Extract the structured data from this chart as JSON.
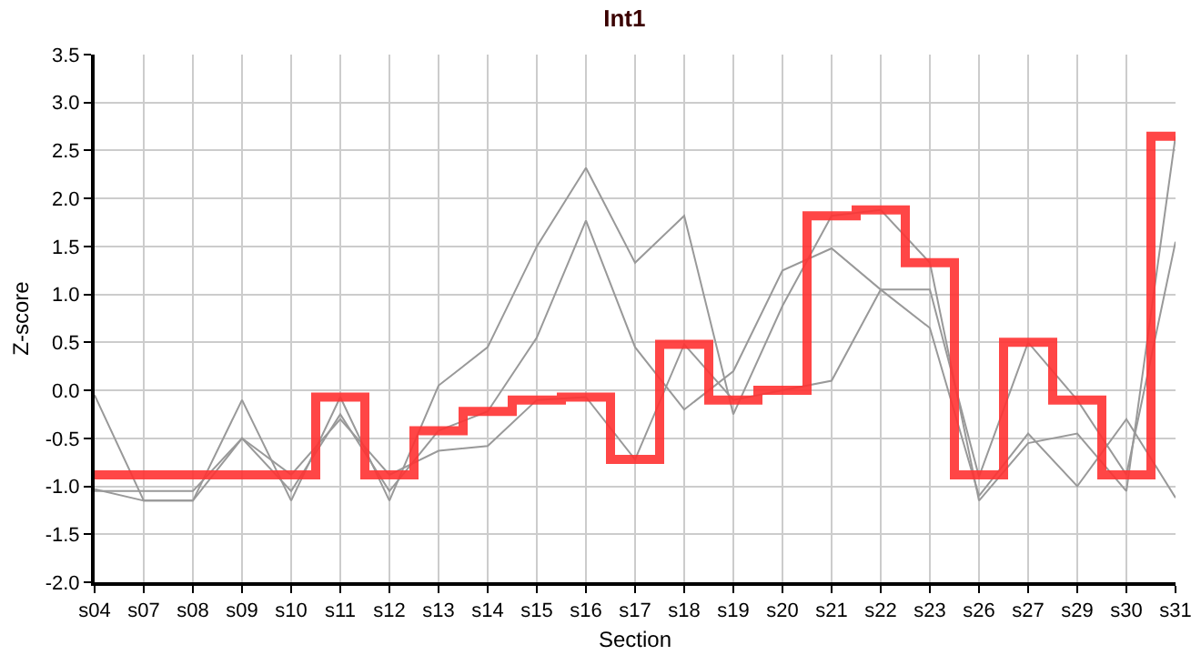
{
  "chart_data": {
    "type": "line",
    "title": "Int1",
    "xlabel": "Section",
    "ylabel": "Z-score",
    "categories": [
      "s04",
      "s07",
      "s08",
      "s09",
      "s10",
      "s11",
      "s12",
      "s13",
      "s14",
      "s15",
      "s16",
      "s17",
      "s18",
      "s19",
      "s20",
      "s21",
      "s22",
      "s23",
      "s26",
      "s27",
      "s29",
      "s30",
      "s31"
    ],
    "series": [
      {
        "color": "#999999",
        "values": [
          -0.05,
          -1.15,
          -1.15,
          -0.1,
          -1.15,
          -0.07,
          -1.15,
          0.05,
          0.45,
          1.5,
          2.32,
          1.33,
          1.82,
          -0.25,
          0.88,
          1.82,
          1.88,
          1.33,
          -1.15,
          -0.55,
          -0.45,
          -1.05,
          2.65
        ]
      },
      {
        "color": "#999999",
        "values": [
          -1.03,
          -1.15,
          -1.15,
          -0.5,
          -1.05,
          -0.25,
          -1.05,
          -0.42,
          -0.22,
          0.55,
          1.77,
          0.45,
          -0.2,
          0.2,
          1.25,
          1.48,
          1.05,
          0.65,
          -1.1,
          -0.45,
          -1.0,
          -0.3,
          -1.12
        ]
      },
      {
        "color": "#999999",
        "values": [
          -1.05,
          -1.05,
          -1.05,
          -0.5,
          -0.88,
          -0.3,
          -0.88,
          -0.63,
          -0.58,
          -0.1,
          -0.07,
          -0.72,
          0.48,
          -0.1,
          0.0,
          0.1,
          1.05,
          1.05,
          -0.9,
          0.5,
          -0.1,
          -0.88,
          1.55
        ]
      },
      {
        "type": "step",
        "color": "#ff3333",
        "values": [
          -0.88,
          -0.88,
          -0.88,
          -0.88,
          -0.88,
          -0.07,
          -0.88,
          -0.42,
          -0.22,
          -0.1,
          -0.07,
          -0.72,
          0.48,
          -0.1,
          0.0,
          1.82,
          1.88,
          1.33,
          -0.88,
          0.5,
          -0.1,
          -0.88,
          2.65
        ]
      }
    ],
    "ylim": [
      -2.0,
      3.5
    ],
    "yticks": [
      {
        "value": -2,
        "label": "-2.0"
      },
      {
        "value": -1.5,
        "label": "-1.5"
      },
      {
        "value": -1,
        "label": "-1.0"
      },
      {
        "value": -0.5,
        "label": "-0.5"
      },
      {
        "value": 0,
        "label": "0.0"
      },
      {
        "value": 0.5,
        "label": "0.5"
      },
      {
        "value": 1,
        "label": "1.0"
      },
      {
        "value": 1.5,
        "label": "1.5"
      },
      {
        "value": 2,
        "label": "2.0"
      },
      {
        "value": 2.5,
        "label": "2.5"
      },
      {
        "value": 3,
        "label": "3.0"
      },
      {
        "value": 3.5,
        "label": "3.5"
      }
    ],
    "grid": true,
    "legend": false,
    "marker": "none"
  }
}
